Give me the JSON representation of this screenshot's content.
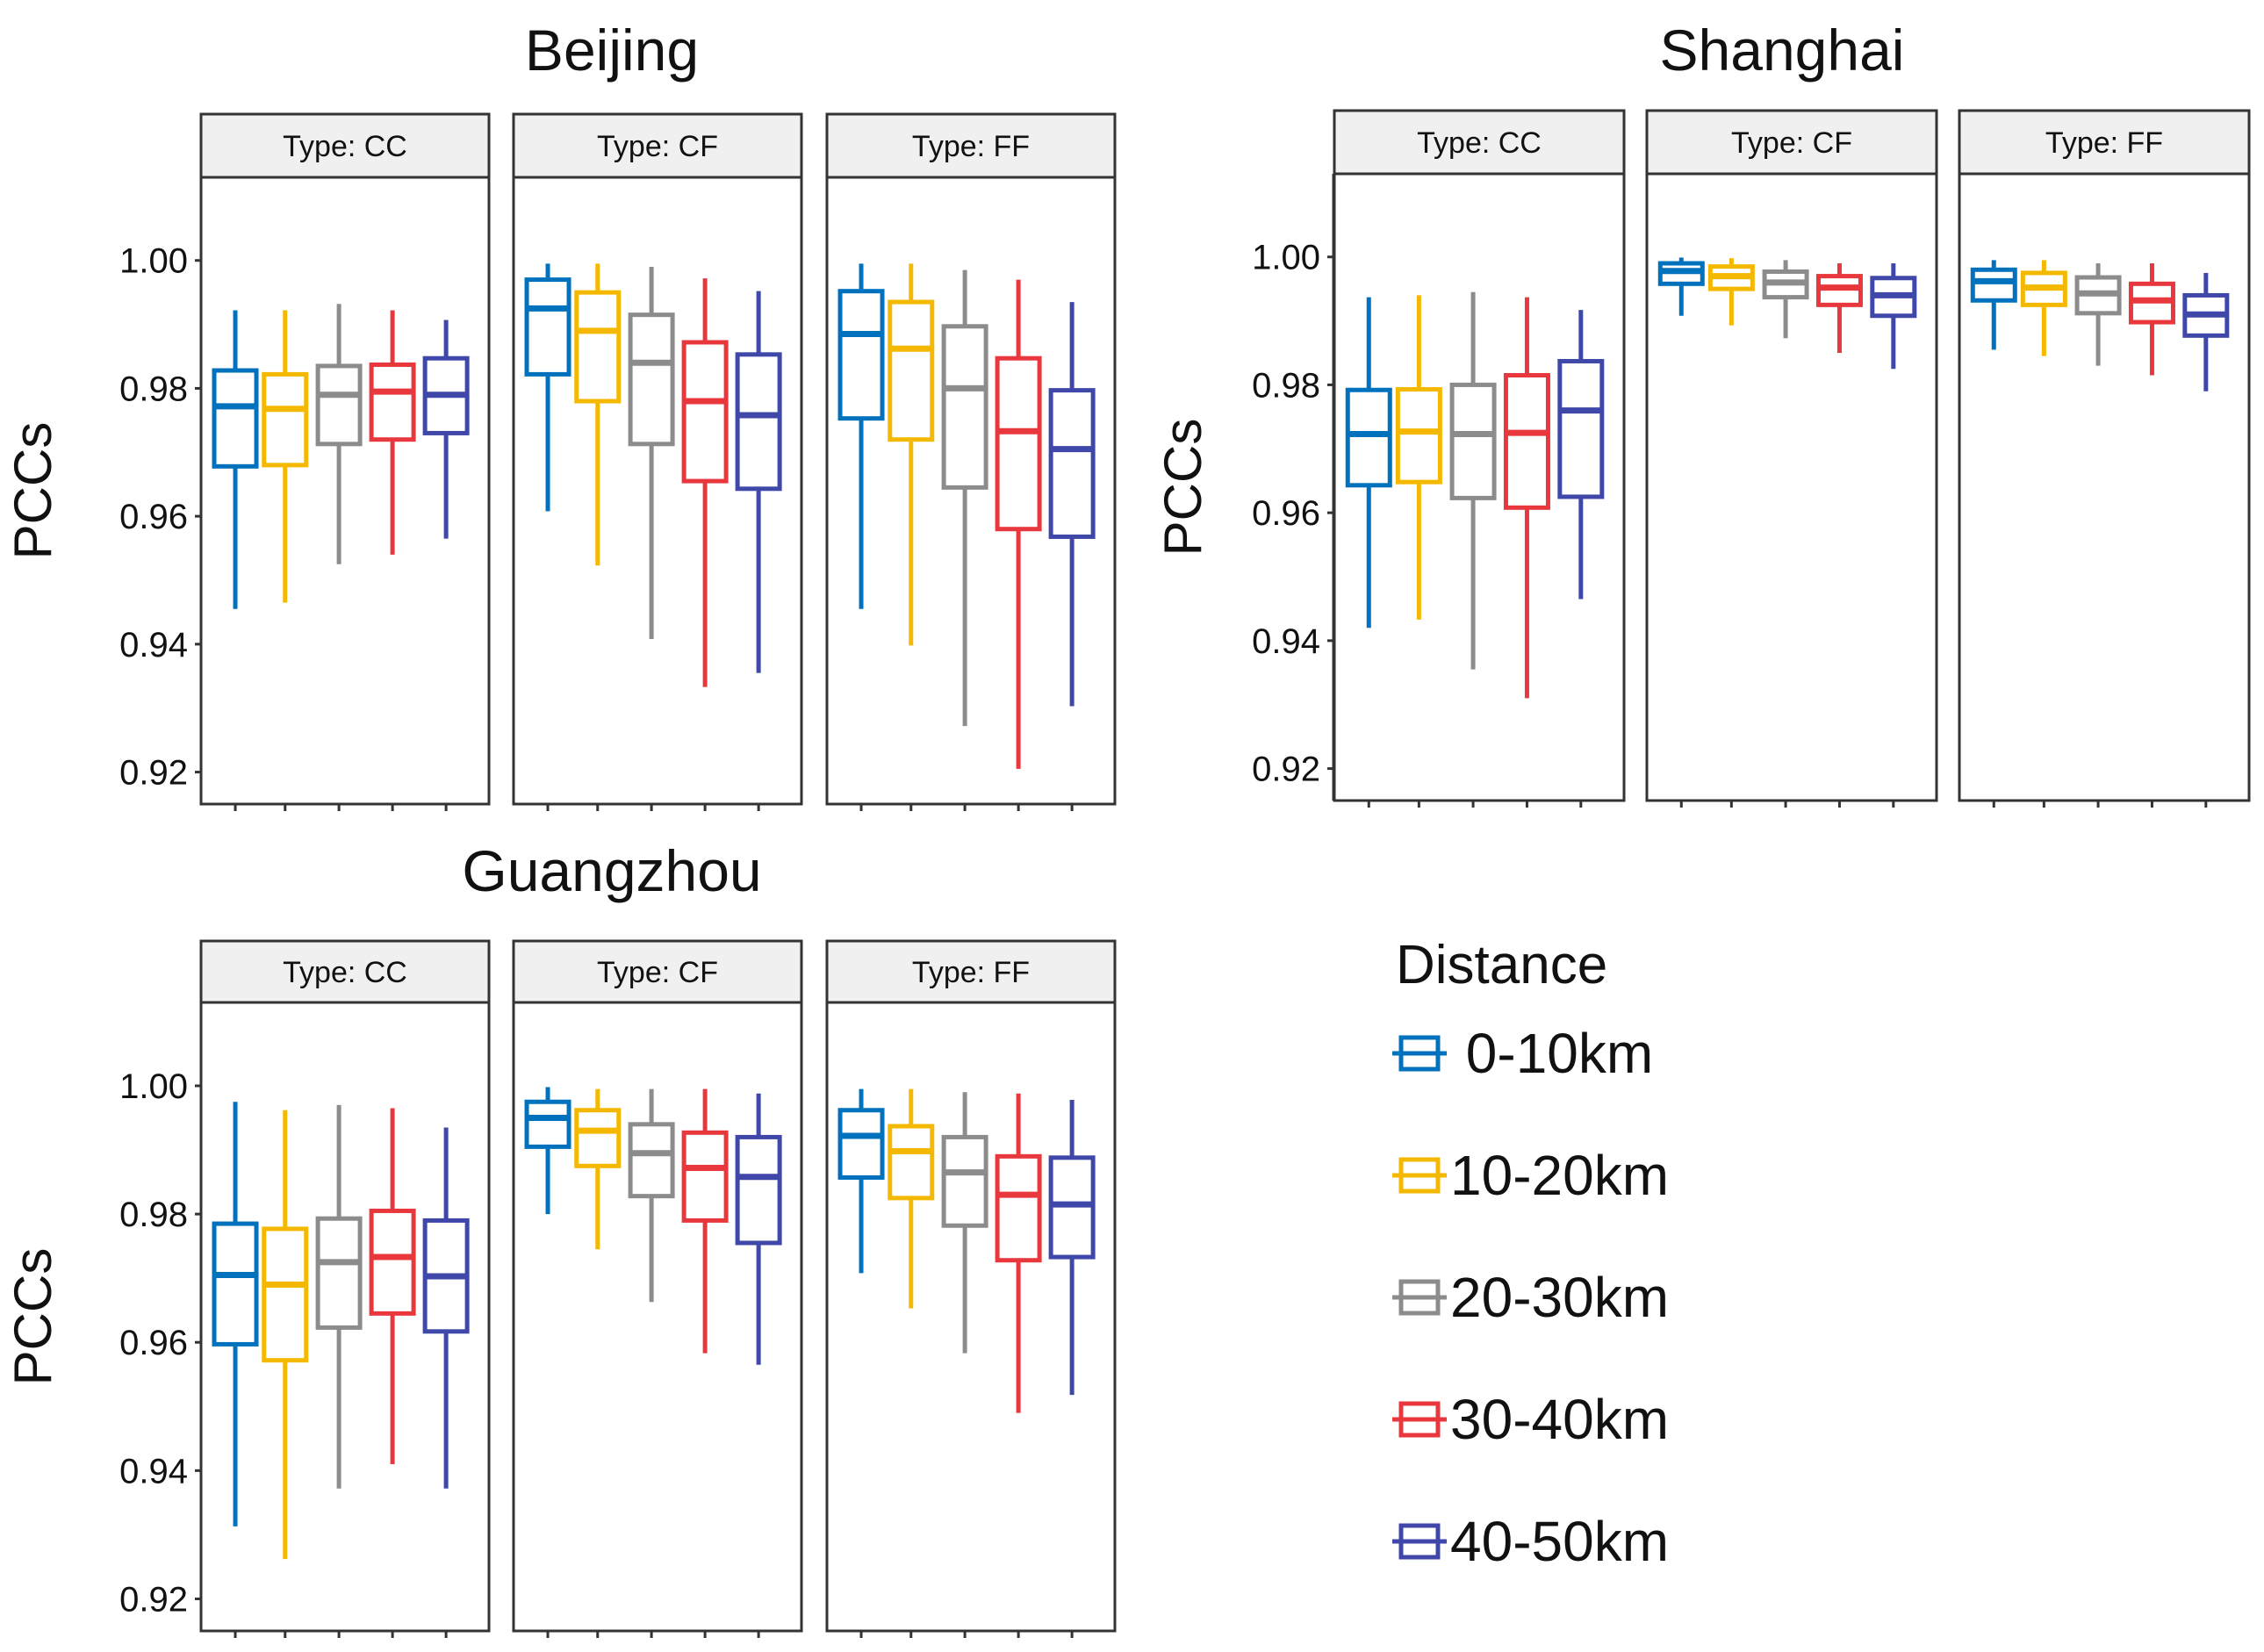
{
  "chart_data": {
    "type": "boxplot",
    "ylabel": "PCCs",
    "ylim": [
      0.915,
      1.013
    ],
    "yticks": [
      0.92,
      0.94,
      0.96,
      0.98,
      1.0
    ],
    "ytick_labels": [
      "0.92",
      "0.94",
      "0.96",
      "0.98",
      "1.00"
    ],
    "facet_prefix": "Type: ",
    "facets": [
      "CC",
      "CF",
      "FF"
    ],
    "legend": {
      "title": "Distance",
      "items": [
        {
          "label": " 0-10km",
          "color": "#0072BD"
        },
        {
          "label": "10-20km",
          "color": "#F5B800"
        },
        {
          "label": "20-30km",
          "color": "#8C8C8C"
        },
        {
          "label": "30-40km",
          "color": "#E8383D"
        },
        {
          "label": "40-50km",
          "color": "#3F48A8"
        }
      ]
    },
    "cities": [
      {
        "name": "Beijing",
        "panels": [
          {
            "type": "CC",
            "boxes": [
              {
                "distance": "0-10km",
                "min": 0.9455,
                "q1": 0.9678,
                "median": 0.9772,
                "q3": 0.9828,
                "max": 0.9922
              },
              {
                "distance": "10-20km",
                "min": 0.9465,
                "q1": 0.968,
                "median": 0.9768,
                "q3": 0.9822,
                "max": 0.9922
              },
              {
                "distance": "20-30km",
                "min": 0.9525,
                "q1": 0.9713,
                "median": 0.979,
                "q3": 0.9835,
                "max": 0.9932
              },
              {
                "distance": "30-40km",
                "min": 0.954,
                "q1": 0.972,
                "median": 0.9795,
                "q3": 0.9837,
                "max": 0.9922
              },
              {
                "distance": "40-50km",
                "min": 0.9565,
                "q1": 0.973,
                "median": 0.979,
                "q3": 0.9847,
                "max": 0.9907
              }
            ]
          },
          {
            "type": "CF",
            "boxes": [
              {
                "distance": "0-10km",
                "min": 0.9608,
                "q1": 0.9822,
                "median": 0.9925,
                "q3": 0.997,
                "max": 0.9995
              },
              {
                "distance": "10-20km",
                "min": 0.9523,
                "q1": 0.978,
                "median": 0.989,
                "q3": 0.995,
                "max": 0.9995
              },
              {
                "distance": "20-30km",
                "min": 0.9408,
                "q1": 0.9713,
                "median": 0.984,
                "q3": 0.9915,
                "max": 0.999
              },
              {
                "distance": "30-40km",
                "min": 0.9333,
                "q1": 0.9655,
                "median": 0.978,
                "q3": 0.9872,
                "max": 0.9972
              },
              {
                "distance": "40-50km",
                "min": 0.9355,
                "q1": 0.9643,
                "median": 0.9758,
                "q3": 0.9853,
                "max": 0.9952
              }
            ]
          },
          {
            "type": "FF",
            "boxes": [
              {
                "distance": "0-10km",
                "min": 0.9455,
                "q1": 0.9753,
                "median": 0.9885,
                "q3": 0.9952,
                "max": 0.9995
              },
              {
                "distance": "10-20km",
                "min": 0.9398,
                "q1": 0.972,
                "median": 0.9862,
                "q3": 0.9935,
                "max": 0.9995
              },
              {
                "distance": "20-30km",
                "min": 0.9272,
                "q1": 0.9645,
                "median": 0.98,
                "q3": 0.9897,
                "max": 0.9985
              },
              {
                "distance": "30-40km",
                "min": 0.9205,
                "q1": 0.958,
                "median": 0.9733,
                "q3": 0.9847,
                "max": 0.997
              },
              {
                "distance": "40-50km",
                "min": 0.9303,
                "q1": 0.9568,
                "median": 0.9705,
                "q3": 0.9797,
                "max": 0.9935
              }
            ]
          }
        ]
      },
      {
        "name": "Shanghai",
        "panels": [
          {
            "type": "CC",
            "boxes": [
              {
                "distance": "0-10km",
                "min": 0.942,
                "q1": 0.9643,
                "median": 0.9723,
                "q3": 0.9792,
                "max": 0.9937
              },
              {
                "distance": "10-20km",
                "min": 0.9433,
                "q1": 0.9648,
                "median": 0.9727,
                "q3": 0.9793,
                "max": 0.994
              },
              {
                "distance": "20-30km",
                "min": 0.9355,
                "q1": 0.9623,
                "median": 0.9723,
                "q3": 0.98,
                "max": 0.9945
              },
              {
                "distance": "30-40km",
                "min": 0.931,
                "q1": 0.9608,
                "median": 0.9725,
                "q3": 0.9815,
                "max": 0.9937
              },
              {
                "distance": "40-50km",
                "min": 0.9465,
                "q1": 0.9625,
                "median": 0.976,
                "q3": 0.9837,
                "max": 0.9917
              }
            ]
          },
          {
            "type": "CF",
            "boxes": [
              {
                "distance": "0-10km",
                "min": 0.9908,
                "q1": 0.9958,
                "median": 0.9978,
                "q3": 0.999,
                "max": 0.9999
              },
              {
                "distance": "10-20km",
                "min": 0.9893,
                "q1": 0.995,
                "median": 0.997,
                "q3": 0.9985,
                "max": 0.9998
              },
              {
                "distance": "20-30km",
                "min": 0.9873,
                "q1": 0.9937,
                "median": 0.996,
                "q3": 0.9977,
                "max": 0.9995
              },
              {
                "distance": "30-40km",
                "min": 0.985,
                "q1": 0.9925,
                "median": 0.9952,
                "q3": 0.997,
                "max": 0.999
              },
              {
                "distance": "40-50km",
                "min": 0.9825,
                "q1": 0.9908,
                "median": 0.994,
                "q3": 0.9967,
                "max": 0.999
              }
            ]
          },
          {
            "type": "FF",
            "boxes": [
              {
                "distance": "0-10km",
                "min": 0.9855,
                "q1": 0.9932,
                "median": 0.9962,
                "q3": 0.998,
                "max": 0.9995
              },
              {
                "distance": "10-20km",
                "min": 0.9845,
                "q1": 0.9925,
                "median": 0.9952,
                "q3": 0.9975,
                "max": 0.9995
              },
              {
                "distance": "20-30km",
                "min": 0.983,
                "q1": 0.9912,
                "median": 0.9943,
                "q3": 0.9968,
                "max": 0.999
              },
              {
                "distance": "30-40km",
                "min": 0.9815,
                "q1": 0.9898,
                "median": 0.9932,
                "q3": 0.9958,
                "max": 0.999
              },
              {
                "distance": "40-50km",
                "min": 0.979,
                "q1": 0.9877,
                "median": 0.991,
                "q3": 0.994,
                "max": 0.9975
              }
            ]
          }
        ]
      },
      {
        "name": "Guangzhou",
        "panels": [
          {
            "type": "CC",
            "boxes": [
              {
                "distance": "0-10km",
                "min": 0.9313,
                "q1": 0.9597,
                "median": 0.9705,
                "q3": 0.9785,
                "max": 0.9975
              },
              {
                "distance": "10-20km",
                "min": 0.9262,
                "q1": 0.9572,
                "median": 0.969,
                "q3": 0.9777,
                "max": 0.9962
              },
              {
                "distance": "20-30km",
                "min": 0.9372,
                "q1": 0.9623,
                "median": 0.9725,
                "q3": 0.9793,
                "max": 0.997
              },
              {
                "distance": "30-40km",
                "min": 0.941,
                "q1": 0.9645,
                "median": 0.9733,
                "q3": 0.9805,
                "max": 0.9965
              },
              {
                "distance": "40-50km",
                "min": 0.9372,
                "q1": 0.9617,
                "median": 0.9703,
                "q3": 0.979,
                "max": 0.9935
              }
            ]
          },
          {
            "type": "CF",
            "boxes": [
              {
                "distance": "0-10km",
                "min": 0.98,
                "q1": 0.9905,
                "median": 0.995,
                "q3": 0.9975,
                "max": 0.9998
              },
              {
                "distance": "10-20km",
                "min": 0.9745,
                "q1": 0.9875,
                "median": 0.993,
                "q3": 0.9962,
                "max": 0.9995
              },
              {
                "distance": "20-30km",
                "min": 0.9663,
                "q1": 0.9828,
                "median": 0.9895,
                "q3": 0.994,
                "max": 0.9995
              },
              {
                "distance": "30-40km",
                "min": 0.9583,
                "q1": 0.979,
                "median": 0.9872,
                "q3": 0.9927,
                "max": 0.9995
              },
              {
                "distance": "40-50km",
                "min": 0.9565,
                "q1": 0.9755,
                "median": 0.9858,
                "q3": 0.992,
                "max": 0.9988
              }
            ]
          },
          {
            "type": "FF",
            "boxes": [
              {
                "distance": "0-10km",
                "min": 0.9708,
                "q1": 0.9857,
                "median": 0.9922,
                "q3": 0.9962,
                "max": 0.9995
              },
              {
                "distance": "10-20km",
                "min": 0.9653,
                "q1": 0.9825,
                "median": 0.9898,
                "q3": 0.9937,
                "max": 0.9995
              },
              {
                "distance": "20-30km",
                "min": 0.9583,
                "q1": 0.9782,
                "median": 0.9865,
                "q3": 0.992,
                "max": 0.999
              },
              {
                "distance": "30-40km",
                "min": 0.949,
                "q1": 0.9728,
                "median": 0.983,
                "q3": 0.989,
                "max": 0.9988
              },
              {
                "distance": "40-50km",
                "min": 0.9518,
                "q1": 0.9733,
                "median": 0.9815,
                "q3": 0.9888,
                "max": 0.9978
              }
            ]
          }
        ]
      }
    ]
  }
}
